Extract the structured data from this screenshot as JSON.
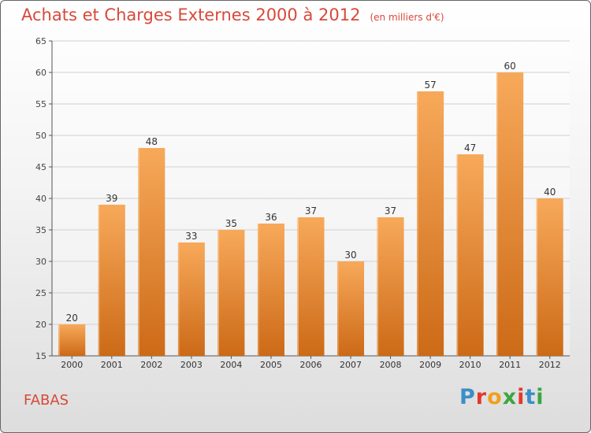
{
  "header": {
    "title": "Achats et Charges Externes 2000 à 2012",
    "subtitle": "(en milliers d'€)"
  },
  "footer": {
    "commune": "FABAS",
    "logo_text": "Proxiti",
    "logo_colors": [
      "#3b8ec8",
      "#e2382b",
      "#f0a020",
      "#3aa63f",
      "#e2382b",
      "#3b8ec8",
      "#3aa63f"
    ]
  },
  "colors": {
    "bar_top": "#f7a95a",
    "bar_bottom": "#cc6a17",
    "bar_edge": "#ffd7a8",
    "title": "#d7493b"
  },
  "chart_data": {
    "type": "bar",
    "title": "Achats et Charges Externes 2000 à 2012",
    "subtitle": "(en milliers d'€)",
    "xlabel": "",
    "ylabel": "",
    "categories": [
      "2000",
      "2001",
      "2002",
      "2003",
      "2004",
      "2005",
      "2006",
      "2007",
      "2008",
      "2009",
      "2010",
      "2011",
      "2012"
    ],
    "values": [
      20,
      39,
      48,
      33,
      35,
      36,
      37,
      30,
      37,
      57,
      47,
      60,
      40
    ],
    "ylim": [
      15,
      65
    ],
    "yticks": [
      15,
      20,
      25,
      30,
      35,
      40,
      45,
      50,
      55,
      60,
      65
    ],
    "grid": true,
    "legend": "none"
  }
}
